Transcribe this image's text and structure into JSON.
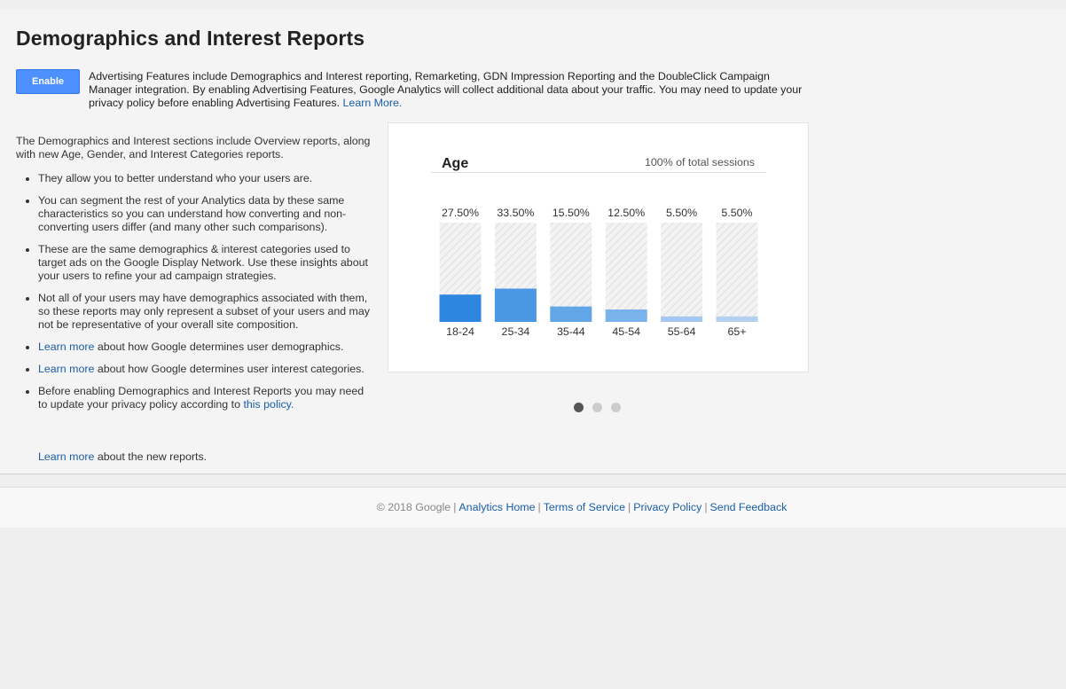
{
  "page": {
    "title": "Demographics and Interest Reports",
    "enable_label": "Enable",
    "intro_text": "Advertising Features include Demographics and Interest reporting, Remarketing, GDN Impression Reporting and the DoubleClick Campaign Manager integration. By enabling Advertising Features, Google Analytics will collect additional data about your traffic. You may need to update your privacy policy before enabling Advertising Features.",
    "intro_link": "Learn More.",
    "description": "The Demographics and Interest sections include Overview reports, along with new Age, Gender, and Interest Categories reports.",
    "bullets": {
      "b1": "They allow you to better understand who your users are.",
      "b2": "You can segment the rest of your Analytics data by these same characteristics so you can understand how converting and non-converting users differ (and many other such comparisons).",
      "b3": "These are the same demographics & interest categories used to target ads on the Google Display Network. Use these insights about your users to refine your ad campaign strategies.",
      "b4": "Not all of your users may have demographics associated with them, so these reports may only represent a subset of your users and may not be representative of your overall site composition.",
      "b5_link": "Learn more",
      "b5_text": "about how Google determines user demographics.",
      "b6_link": "Learn more",
      "b6_text": "about how Google determines user interest categories.",
      "b7_text": "Before enabling Demographics and Interest Reports you may need to update your privacy policy according to",
      "b7_link": "this policy."
    },
    "newreports_link": "Learn more",
    "newreports_text": "about the new reports."
  },
  "card": {
    "title": "Age",
    "subtitle": "100% of total sessions"
  },
  "chart_data": {
    "type": "bar",
    "title": "Age",
    "categories": [
      "18-24",
      "25-34",
      "35-44",
      "45-54",
      "55-64",
      "65+"
    ],
    "values": [
      27.5,
      33.5,
      15.5,
      12.5,
      5.5,
      5.5
    ],
    "value_labels": [
      "27.50%",
      "33.50%",
      "15.50%",
      "12.50%",
      "5.50%",
      "5.50%"
    ],
    "ylim": [
      0,
      100
    ],
    "colors": [
      "#2d86e0",
      "#4a97e4",
      "#62a6e7",
      "#7ab3ea",
      "#a4c8ef",
      "#b3d0f1"
    ],
    "grid": false
  },
  "carousel": {
    "count": 3,
    "active_index": 0
  },
  "footer": {
    "copyright": "© 2018 Google",
    "links": [
      "Analytics Home",
      "Terms of Service",
      "Privacy Policy",
      "Send Feedback"
    ]
  }
}
